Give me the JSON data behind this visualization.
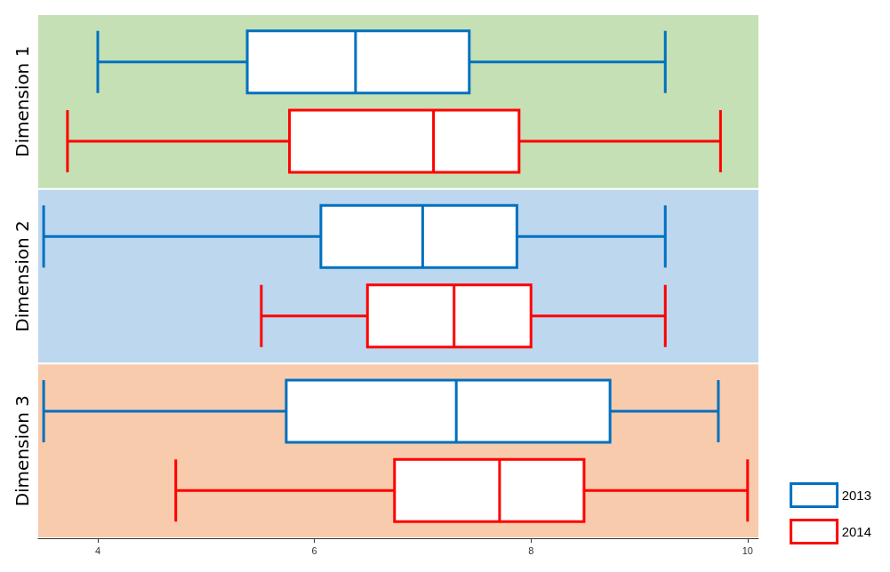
{
  "chart_data": {
    "type": "box",
    "orientation": "horizontal",
    "categories": [
      "Dimension 1",
      "Dimension 2",
      "Dimension 3"
    ],
    "series": [
      {
        "name": "2013",
        "color": "#0070c0",
        "boxes": [
          {
            "low": 4.0,
            "q1": 5.38,
            "median": 6.38,
            "q3": 7.43,
            "high": 9.24
          },
          {
            "low": 3.5,
            "q1": 6.06,
            "median": 7.0,
            "q3": 7.87,
            "high": 9.24
          },
          {
            "low": 3.5,
            "q1": 5.74,
            "median": 7.31,
            "q3": 8.73,
            "high": 9.73
          }
        ]
      },
      {
        "name": "2014",
        "color": "#ff0000",
        "boxes": [
          {
            "low": 3.72,
            "q1": 5.77,
            "median": 7.1,
            "q3": 7.89,
            "high": 9.75
          },
          {
            "low": 5.51,
            "q1": 6.49,
            "median": 7.29,
            "q3": 8.0,
            "high": 9.24
          },
          {
            "low": 4.72,
            "q1": 6.74,
            "median": 7.71,
            "q3": 8.49,
            "high": 10.0
          }
        ]
      }
    ],
    "xlim": [
      3.45,
      10.1
    ],
    "xticks": [
      4,
      6,
      8,
      10
    ],
    "bands": [
      {
        "axis": "y",
        "from": "Dimension 1",
        "to": "Dimension 1",
        "color": "#c5e0b4"
      },
      {
        "axis": "y",
        "from": "Dimension 2",
        "to": "Dimension 2",
        "color": "#bdd7ee"
      },
      {
        "axis": "y",
        "from": "Dimension 3",
        "to": "Dimension 3",
        "color": "#f8cbad"
      }
    ],
    "legend": "bottom right",
    "grid": false
  }
}
